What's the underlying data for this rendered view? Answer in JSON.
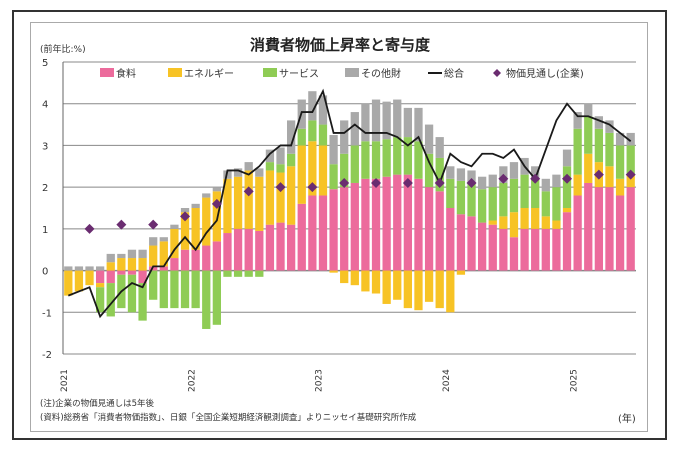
{
  "chart_data": {
    "type": "bar",
    "title": "消費者物価上昇率と寄与度",
    "ylabel": "(前年比:%)",
    "xlabel": "(年)",
    "ylim": [
      -2,
      5
    ],
    "yticks": [
      "-2",
      "-1",
      "0",
      "1",
      "2",
      "3",
      "4",
      "5"
    ],
    "xtick_labels": [
      "2021",
      "2022",
      "2023",
      "2024",
      "2025"
    ],
    "start": "2021-01",
    "months": 54,
    "grid": true,
    "legend_position": "top",
    "colors": {
      "food": "#ec6b9c",
      "energy": "#f7c325",
      "services": "#8fcc55",
      "other": "#a9a9a9",
      "total": "#1a1a1a",
      "expect": "#6a2c70"
    },
    "series": [
      {
        "key": "food",
        "name": "食料",
        "values": [
          0,
          0,
          0,
          -0.3,
          -0.3,
          -0.1,
          -0.1,
          -0.3,
          0.1,
          0.1,
          0.3,
          0.5,
          0.5,
          0.6,
          0.7,
          0.9,
          1.0,
          1.0,
          0.95,
          1.1,
          1.15,
          1.1,
          1.6,
          1.8,
          1.8,
          1.95,
          2.0,
          2.1,
          2.2,
          2.2,
          2.25,
          2.3,
          2.3,
          2.2,
          2.0,
          1.9,
          1.5,
          1.35,
          1.3,
          1.15,
          1.1,
          1.0,
          0.8,
          1.0,
          1.0,
          1.0,
          1.0,
          1.4,
          1.8,
          2.1,
          2.0,
          2.0,
          1.8,
          2.0
        ]
      },
      {
        "key": "energy",
        "name": "エネルギー",
        "values": [
          -0.6,
          -0.5,
          -0.35,
          -0.1,
          0.2,
          0.3,
          0.3,
          0.3,
          0.5,
          0.6,
          0.7,
          0.9,
          1.0,
          1.15,
          1.2,
          1.3,
          1.25,
          1.4,
          1.3,
          1.3,
          1.2,
          1.4,
          1.4,
          1.3,
          1.2,
          -0.05,
          -0.3,
          -0.35,
          -0.5,
          -0.55,
          -0.8,
          -0.7,
          -0.9,
          -0.95,
          -0.75,
          -0.9,
          -1.0,
          -0.1,
          0,
          0,
          0.1,
          0.3,
          0.6,
          0.5,
          0.5,
          0.3,
          0.2,
          0.1,
          0.5,
          0.7,
          0.6,
          0.5,
          0.4,
          0.3
        ]
      },
      {
        "key": "services",
        "name": "サービス",
        "values": [
          0,
          0,
          0,
          -0.6,
          -0.8,
          -0.8,
          -0.9,
          -0.9,
          -0.7,
          -0.9,
          -0.9,
          -0.9,
          -0.9,
          -1.4,
          -1.3,
          -0.15,
          -0.15,
          -0.15,
          -0.15,
          0.2,
          0.2,
          0.3,
          0.4,
          0.5,
          0.5,
          0.6,
          0.8,
          0.9,
          0.9,
          0.9,
          0.9,
          0.9,
          0.9,
          0.9,
          0.8,
          0.8,
          0.7,
          0.8,
          0.8,
          0.8,
          0.8,
          0.8,
          0.8,
          0.8,
          0.7,
          0.6,
          0.8,
          1.0,
          1.1,
          0.9,
          0.8,
          0.8,
          0.8,
          0.7
        ]
      },
      {
        "key": "other",
        "name": "その他財",
        "values": [
          0.1,
          0.1,
          0.1,
          0.1,
          0.2,
          0.1,
          0.2,
          0.2,
          0.2,
          0.1,
          0.1,
          0.1,
          0.1,
          0.1,
          0.1,
          0.2,
          0.2,
          0.2,
          0.2,
          0.3,
          0.4,
          0.8,
          0.7,
          0.7,
          0.7,
          0.7,
          0.8,
          0.8,
          0.9,
          1.0,
          0.9,
          0.9,
          0.7,
          0.8,
          0.7,
          0.5,
          0.3,
          0.3,
          0.3,
          0.3,
          0.3,
          0.4,
          0.4,
          0.4,
          0.3,
          0.3,
          0.3,
          0.4,
          0.4,
          0.3,
          0.3,
          0.3,
          0.3,
          0.3
        ]
      }
    ],
    "total": {
      "name": "総合",
      "values": [
        -0.6,
        -0.5,
        -0.4,
        -1.1,
        -0.8,
        -0.5,
        -0.3,
        -0.4,
        0.1,
        0.1,
        0.5,
        0.8,
        0.5,
        0.9,
        1.2,
        2.4,
        2.4,
        2.3,
        2.5,
        2.8,
        3.0,
        3.0,
        3.8,
        3.8,
        4.3,
        3.3,
        3.3,
        3.5,
        3.3,
        3.3,
        3.3,
        3.2,
        3.0,
        3.2,
        2.6,
        2.1,
        2.8,
        2.6,
        2.5,
        2.8,
        2.8,
        2.7,
        2.9,
        2.5,
        2.2,
        2.9,
        3.6,
        4.0,
        3.7,
        3.7,
        3.6,
        3.5,
        3.3,
        3.1
      ]
    },
    "expectations": {
      "name": "物価見通し(企業)",
      "months": [
        2,
        5,
        8,
        11,
        14,
        17,
        20,
        23,
        26,
        29,
        32,
        35,
        38,
        41,
        44,
        47,
        50,
        53
      ],
      "values": [
        1.0,
        1.1,
        1.1,
        1.3,
        1.6,
        1.9,
        2.0,
        2.0,
        2.1,
        2.1,
        2.1,
        2.1,
        2.1,
        2.2,
        2.2,
        2.2,
        2.3,
        2.3
      ]
    }
  },
  "notes": {
    "note1": "(注)企業の物価見通しは5年後",
    "note2": "(資料)総務省「消費者物価指数」、日銀「全国企業短期経済観測調査」よりニッセイ基礎研究所作成"
  }
}
